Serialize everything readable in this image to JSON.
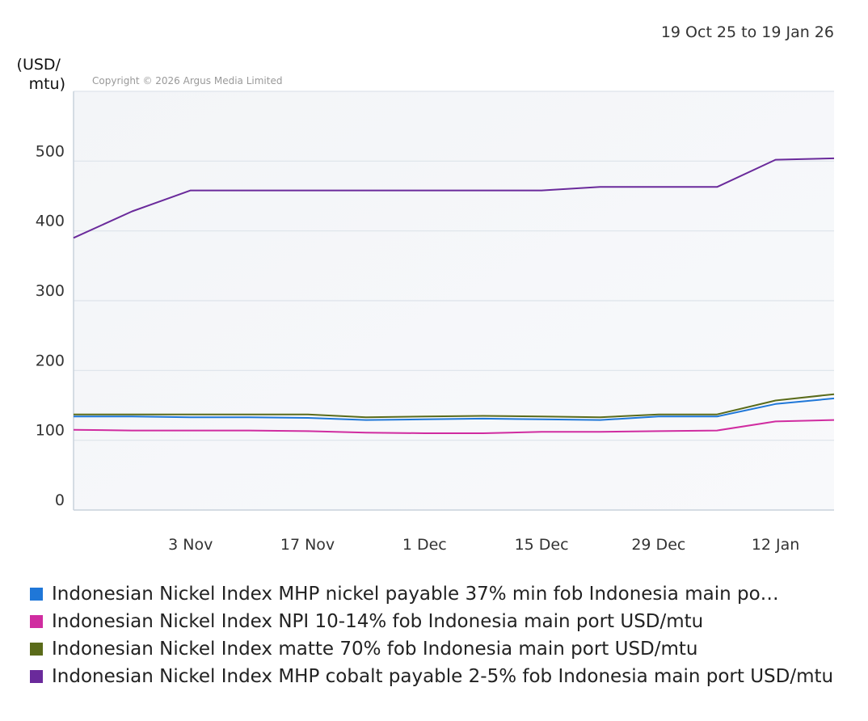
{
  "chart_data": {
    "type": "line",
    "date_range": "19 Oct 25 to 19 Jan 26",
    "ylabel": "(USD/ mtu)",
    "copyright": "Copyright © 2026 Argus Media Limited",
    "ylim": [
      0,
      600
    ],
    "yticks": [
      0,
      100,
      200,
      300,
      400,
      500
    ],
    "xlim": [
      "2025-10-20",
      "2026-01-19"
    ],
    "xticks": [
      {
        "date": "2025-11-03",
        "label": "3 Nov"
      },
      {
        "date": "2025-11-17",
        "label": "17 Nov"
      },
      {
        "date": "2025-12-01",
        "label": "1 Dec"
      },
      {
        "date": "2025-12-15",
        "label": "15 Dec"
      },
      {
        "date": "2025-12-29",
        "label": "29 Dec"
      },
      {
        "date": "2026-01-12",
        "label": "12 Jan"
      }
    ],
    "grid": true,
    "legend_position": "bottom",
    "x": [
      "2025-10-20",
      "2025-10-27",
      "2025-11-03",
      "2025-11-10",
      "2025-11-17",
      "2025-11-24",
      "2025-12-01",
      "2025-12-08",
      "2025-12-15",
      "2025-12-22",
      "2025-12-29",
      "2026-01-05",
      "2026-01-12",
      "2026-01-19"
    ],
    "series": [
      {
        "name": "Indonesian Nickel Index MHP nickel payable 37% min fob Indonesia main po…",
        "color": "#1f77d8",
        "values": [
          134,
          134,
          133,
          133,
          132,
          129,
          130,
          131,
          130,
          129,
          134,
          134,
          152,
          160
        ]
      },
      {
        "name": "Indonesian Nickel Index NPI 10-14% fob Indonesia main port USD/mtu",
        "color": "#d02ca0",
        "values": [
          115,
          114,
          114,
          114,
          113,
          111,
          110,
          110,
          112,
          112,
          113,
          114,
          127,
          129
        ]
      },
      {
        "name": "Indonesian Nickel Index matte 70% fob Indonesia main port USD/mtu",
        "color": "#5a6b1a",
        "values": [
          137,
          137,
          137,
          137,
          137,
          133,
          134,
          135,
          134,
          133,
          137,
          137,
          157,
          166
        ]
      },
      {
        "name": "Indonesian Nickel Index MHP cobalt payable 2-5% fob Indonesia main port USD/mtu",
        "color": "#6a2a9b",
        "values": [
          390,
          428,
          458,
          458,
          458,
          458,
          458,
          458,
          458,
          463,
          463,
          463,
          502,
          504
        ]
      }
    ]
  }
}
